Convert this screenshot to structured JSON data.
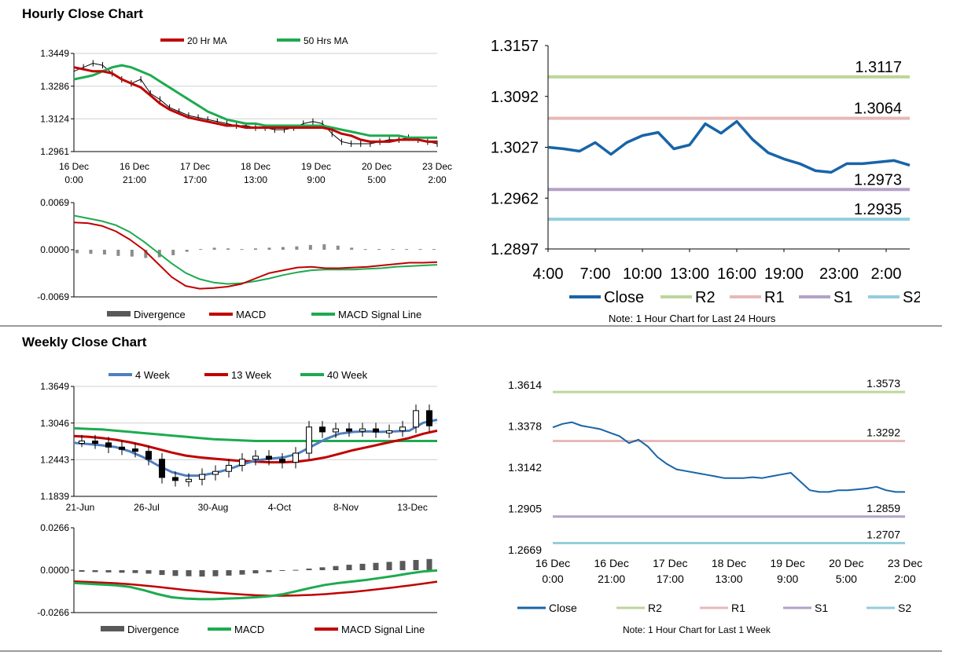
{
  "hourly_section": {
    "title": "Hourly Close Chart"
  },
  "weekly_section": {
    "title": "Weekly Close Chart"
  },
  "colors": {
    "red": "#c00000",
    "green": "#1eaa50",
    "blue": "#4f7fbf",
    "darkblue": "#1864a8",
    "r2": "#bcd69a",
    "r1": "#e6b9b8",
    "s1": "#b3a2c7",
    "s2": "#93cddd",
    "gray": "#7f7f7f"
  },
  "chart_data": [
    {
      "id": "hourly_price",
      "type": "line",
      "title": "",
      "ylim": [
        1.2961,
        1.3449
      ],
      "y_ticks": [
        "1.3449",
        "1.3286",
        "1.3124",
        "1.2961"
      ],
      "x_labels": [
        [
          "16 Dec",
          "0:00"
        ],
        [
          "16 Dec",
          "21:00"
        ],
        [
          "17 Dec",
          "17:00"
        ],
        [
          "18 Dec",
          "13:00"
        ],
        [
          "19 Dec",
          "9:00"
        ],
        [
          "20 Dec",
          "5:00"
        ],
        [
          "23 Dec",
          "2:00"
        ]
      ],
      "legend": [
        "20 Hr MA",
        "50 Hrs MA"
      ],
      "series": [
        {
          "name": "Close",
          "values": [
            1.336,
            1.338,
            1.34,
            1.339,
            1.335,
            1.332,
            1.33,
            1.332,
            1.325,
            1.322,
            1.318,
            1.316,
            1.314,
            1.313,
            1.312,
            1.311,
            1.31,
            1.309,
            1.309,
            1.308,
            1.308,
            1.307,
            1.307,
            1.308,
            1.31,
            1.311,
            1.31,
            1.305,
            1.301,
            1.3,
            1.3,
            1.3,
            1.301,
            1.302,
            1.302,
            1.303,
            1.302,
            1.301,
            1.3
          ]
        },
        {
          "name": "20 Hr MA",
          "values": [
            1.338,
            1.337,
            1.336,
            1.336,
            1.335,
            1.332,
            1.33,
            1.328,
            1.324,
            1.32,
            1.317,
            1.315,
            1.313,
            1.312,
            1.311,
            1.31,
            1.309,
            1.309,
            1.308,
            1.308,
            1.308,
            1.308,
            1.308,
            1.308,
            1.308,
            1.308,
            1.308,
            1.307,
            1.305,
            1.304,
            1.302,
            1.301,
            1.301,
            1.301,
            1.302,
            1.302,
            1.302,
            1.301,
            1.301
          ]
        },
        {
          "name": "50 Hrs MA",
          "values": [
            1.332,
            1.333,
            1.334,
            1.336,
            1.338,
            1.339,
            1.338,
            1.336,
            1.334,
            1.331,
            1.328,
            1.325,
            1.322,
            1.319,
            1.316,
            1.314,
            1.312,
            1.311,
            1.31,
            1.31,
            1.309,
            1.309,
            1.309,
            1.309,
            1.309,
            1.309,
            1.309,
            1.308,
            1.307,
            1.306,
            1.305,
            1.304,
            1.304,
            1.304,
            1.304,
            1.303,
            1.303,
            1.303,
            1.303
          ]
        }
      ]
    },
    {
      "id": "hourly_macd",
      "type": "line",
      "ylim": [
        -0.0069,
        0.0069
      ],
      "y_ticks": [
        "0.0069",
        "0.0000",
        "-0.0069"
      ],
      "legend": [
        "Divergence",
        "MACD",
        "MACD Signal Line"
      ],
      "series": [
        {
          "name": "Divergence",
          "values": [
            -0.0005,
            -0.0006,
            -0.0007,
            -0.0009,
            -0.001,
            -0.0012,
            -0.0011,
            -0.0008,
            -0.0003,
            0.0001,
            0.0003,
            0.0002,
            0.0001,
            0.0002,
            0.0003,
            0.0004,
            0.0005,
            0.0007,
            0.0008,
            0.0006,
            0.0003,
            0.0001,
            0.0001,
            0.0001,
            0.0001,
            0.0001,
            0.0001
          ]
        },
        {
          "name": "MACD",
          "values": [
            0.004,
            0.0039,
            0.0035,
            0.0027,
            0.0015,
            0.0,
            -0.002,
            -0.004,
            -0.0053,
            -0.0057,
            -0.0056,
            -0.0054,
            -0.005,
            -0.0042,
            -0.0034,
            -0.003,
            -0.0026,
            -0.0025,
            -0.0027,
            -0.0027,
            -0.0026,
            -0.0025,
            -0.0023,
            -0.0021,
            -0.0019,
            -0.0019,
            -0.0018
          ]
        },
        {
          "name": "MACD Signal Line",
          "values": [
            0.005,
            0.0046,
            0.0042,
            0.0036,
            0.0026,
            0.0012,
            -0.0004,
            -0.002,
            -0.0034,
            -0.0043,
            -0.0048,
            -0.005,
            -0.0049,
            -0.0046,
            -0.0042,
            -0.0037,
            -0.0033,
            -0.003,
            -0.0029,
            -0.0029,
            -0.0029,
            -0.0028,
            -0.0027,
            -0.0025,
            -0.0024,
            -0.0023,
            -0.0022
          ]
        }
      ]
    },
    {
      "id": "hourly_24h",
      "type": "line",
      "ylim": [
        1.2897,
        1.3157
      ],
      "y_ticks": [
        "1.3157",
        "1.3092",
        "1.3027",
        "1.2962",
        "1.2897"
      ],
      "x_labels": [
        "4:00",
        "7:00",
        "10:00",
        "13:00",
        "16:00",
        "19:00",
        "23:00",
        "2:00"
      ],
      "levels": [
        {
          "name": "R2",
          "value": 1.3117,
          "label": "1.3117"
        },
        {
          "name": "R1",
          "value": 1.3064,
          "label": "1.3064"
        },
        {
          "name": "S1",
          "value": 1.2973,
          "label": "1.2973"
        },
        {
          "name": "S2",
          "value": 1.2935,
          "label": "1.2935"
        }
      ],
      "legend": [
        "Close",
        "R2",
        "R1",
        "S1",
        "S2"
      ],
      "note": "Note: 1 Hour Chart for Last 24 Hours",
      "series": [
        {
          "name": "Close",
          "values": [
            1.3027,
            1.3025,
            1.3022,
            1.3033,
            1.3018,
            1.3033,
            1.3042,
            1.3046,
            1.3025,
            1.303,
            1.3057,
            1.3045,
            1.306,
            1.3037,
            1.302,
            1.3012,
            1.3006,
            1.2997,
            1.2995,
            1.3006,
            1.3006,
            1.3008,
            1.301,
            1.3004
          ]
        }
      ]
    },
    {
      "id": "weekly_price",
      "type": "line",
      "ylim": [
        1.1839,
        1.3649
      ],
      "y_ticks": [
        "1.3649",
        "1.3046",
        "1.2443",
        "1.1839"
      ],
      "x_labels": [
        "21-Jun",
        "26-Jul",
        "30-Aug",
        "4-Oct",
        "8-Nov",
        "13-Dec"
      ],
      "legend": [
        "4 Week",
        "13 Week",
        "40 Week"
      ],
      "series": [
        {
          "name": "Close",
          "values": [
            1.275,
            1.272,
            1.265,
            1.262,
            1.258,
            1.245,
            1.215,
            1.21,
            1.212,
            1.22,
            1.225,
            1.235,
            1.245,
            1.25,
            1.245,
            1.24,
            1.255,
            1.298,
            1.29,
            1.295,
            1.292,
            1.295,
            1.29,
            1.292,
            1.298,
            1.325,
            1.3
          ]
        },
        {
          "name": "4 Week",
          "values": [
            1.272,
            1.27,
            1.268,
            1.265,
            1.258,
            1.248,
            1.235,
            1.224,
            1.218,
            1.218,
            1.222,
            1.228,
            1.236,
            1.243,
            1.246,
            1.248,
            1.254,
            1.266,
            1.278,
            1.287,
            1.29,
            1.291,
            1.29,
            1.291,
            1.292,
            1.305,
            1.31
          ]
        },
        {
          "name": "13 Week",
          "values": [
            1.283,
            1.282,
            1.28,
            1.277,
            1.273,
            1.268,
            1.262,
            1.256,
            1.251,
            1.248,
            1.246,
            1.244,
            1.242,
            1.241,
            1.24,
            1.24,
            1.241,
            1.244,
            1.248,
            1.254,
            1.26,
            1.265,
            1.27,
            1.275,
            1.28,
            1.287,
            1.292
          ]
        },
        {
          "name": "40 Week",
          "values": [
            1.296,
            1.295,
            1.294,
            1.292,
            1.29,
            1.288,
            1.286,
            1.284,
            1.282,
            1.28,
            1.278,
            1.277,
            1.276,
            1.275,
            1.275,
            1.275,
            1.275,
            1.275,
            1.275,
            1.275,
            1.275,
            1.275,
            1.275,
            1.275,
            1.275,
            1.275,
            1.275
          ]
        }
      ]
    },
    {
      "id": "weekly_macd",
      "type": "bar",
      "ylim": [
        -0.0266,
        0.0266
      ],
      "y_ticks": [
        "0.0266",
        "0.0000",
        "-0.0266"
      ],
      "legend": [
        "Divergence",
        "MACD",
        "MACD Signal Line"
      ],
      "series": [
        {
          "name": "Divergence",
          "values": [
            -0.001,
            -0.0012,
            -0.0014,
            -0.0016,
            -0.0018,
            -0.0022,
            -0.003,
            -0.0036,
            -0.0038,
            -0.004,
            -0.0038,
            -0.0034,
            -0.0028,
            -0.002,
            -0.0012,
            -0.0004,
            0.0002,
            0.001,
            0.0018,
            0.0026,
            0.0034,
            0.004,
            0.0046,
            0.0052,
            0.0058,
            0.0064,
            0.007
          ]
        },
        {
          "name": "MACD",
          "values": [
            -0.008,
            -0.0085,
            -0.009,
            -0.0095,
            -0.0105,
            -0.0125,
            -0.015,
            -0.017,
            -0.0178,
            -0.0182,
            -0.0182,
            -0.0178,
            -0.0175,
            -0.017,
            -0.0163,
            -0.015,
            -0.013,
            -0.011,
            -0.0092,
            -0.008,
            -0.007,
            -0.006,
            -0.0048,
            -0.0035,
            -0.002,
            -0.0008,
            -0.0002
          ]
        },
        {
          "name": "MACD Signal Line",
          "values": [
            -0.007,
            -0.0074,
            -0.0078,
            -0.0082,
            -0.0088,
            -0.0096,
            -0.0105,
            -0.0115,
            -0.0124,
            -0.0132,
            -0.014,
            -0.0146,
            -0.0152,
            -0.0157,
            -0.016,
            -0.016,
            -0.0158,
            -0.0155,
            -0.015,
            -0.0143,
            -0.0136,
            -0.0127,
            -0.0117,
            -0.0107,
            -0.0096,
            -0.0084,
            -0.0072
          ]
        }
      ]
    },
    {
      "id": "weekly_1w",
      "type": "line",
      "ylim": [
        1.2669,
        1.3614
      ],
      "y_ticks": [
        "1.3614",
        "1.3378",
        "1.3142",
        "1.2905",
        "1.2669"
      ],
      "x_labels": [
        [
          "16 Dec",
          "0:00"
        ],
        [
          "16 Dec",
          "21:00"
        ],
        [
          "17 Dec",
          "17:00"
        ],
        [
          "18 Dec",
          "13:00"
        ],
        [
          "19 Dec",
          "9:00"
        ],
        [
          "20 Dec",
          "5:00"
        ],
        [
          "23 Dec",
          "2:00"
        ]
      ],
      "levels": [
        {
          "name": "R2",
          "value": 1.3573,
          "label": "1.3573"
        },
        {
          "name": "R1",
          "value": 1.3292,
          "label": "1.3292"
        },
        {
          "name": "S1",
          "value": 1.2859,
          "label": "1.2859"
        },
        {
          "name": "S2",
          "value": 1.2707,
          "label": "1.2707"
        }
      ],
      "legend": [
        "Close",
        "R2",
        "R1",
        "S1",
        "S2"
      ],
      "note": "Note: 1 Hour Chart for Last 1 Week",
      "series": [
        {
          "name": "Close",
          "values": [
            1.337,
            1.339,
            1.34,
            1.338,
            1.337,
            1.336,
            1.334,
            1.332,
            1.328,
            1.33,
            1.326,
            1.32,
            1.316,
            1.313,
            1.312,
            1.311,
            1.31,
            1.309,
            1.308,
            1.308,
            1.308,
            1.3085,
            1.308,
            1.309,
            1.31,
            1.311,
            1.306,
            1.301,
            1.3,
            1.3,
            1.301,
            1.301,
            1.3015,
            1.302,
            1.303,
            1.301,
            1.3,
            1.3
          ]
        }
      ]
    }
  ]
}
